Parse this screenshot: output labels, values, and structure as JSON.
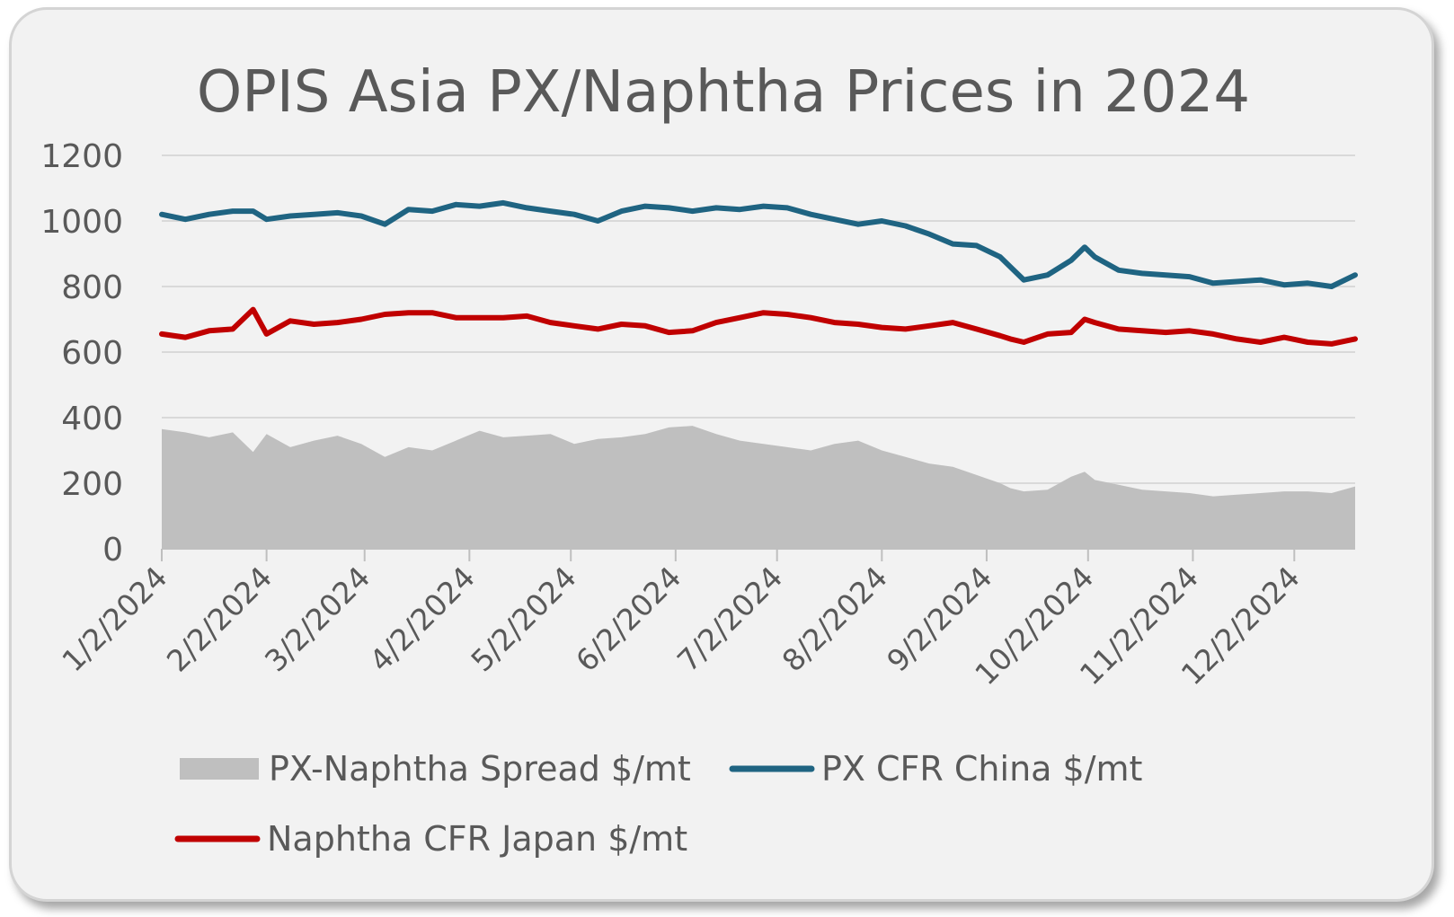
{
  "chart_data": {
    "type": "line",
    "title": "OPIS Asia PX/Naphtha Prices in 2024",
    "xlabel": "",
    "ylabel": "",
    "ylim": [
      0,
      1200
    ],
    "yticks": [
      "0",
      "200",
      "400",
      "600",
      "800",
      "1000",
      "1200"
    ],
    "xlim": [
      "2024-01-02",
      "2024-12-20"
    ],
    "xticks": [
      "1/2/2024",
      "2/2/2024",
      "3/2/2024",
      "4/2/2024",
      "5/2/2024",
      "6/2/2024",
      "7/2/2024",
      "8/2/2024",
      "9/2/2024",
      "10/2/2024",
      "11/2/2024",
      "12/2/2024"
    ],
    "grid": "horizontal",
    "legend_position": "bottom",
    "x": [
      "2024-01-02",
      "2024-01-09",
      "2024-01-16",
      "2024-01-23",
      "2024-01-29",
      "2024-02-02",
      "2024-02-09",
      "2024-02-16",
      "2024-02-23",
      "2024-03-01",
      "2024-03-08",
      "2024-03-15",
      "2024-03-22",
      "2024-03-29",
      "2024-04-05",
      "2024-04-12",
      "2024-04-19",
      "2024-04-26",
      "2024-05-03",
      "2024-05-10",
      "2024-05-17",
      "2024-05-24",
      "2024-05-31",
      "2024-06-07",
      "2024-06-14",
      "2024-06-21",
      "2024-06-28",
      "2024-07-05",
      "2024-07-12",
      "2024-07-19",
      "2024-07-26",
      "2024-08-02",
      "2024-08-09",
      "2024-08-16",
      "2024-08-23",
      "2024-08-30",
      "2024-09-06",
      "2024-09-09",
      "2024-09-13",
      "2024-09-20",
      "2024-09-27",
      "2024-10-01",
      "2024-10-04",
      "2024-10-11",
      "2024-10-18",
      "2024-10-25",
      "2024-11-01",
      "2024-11-08",
      "2024-11-15",
      "2024-11-22",
      "2024-11-29",
      "2024-12-06",
      "2024-12-13",
      "2024-12-20"
    ],
    "series": [
      {
        "name": "PX-Naphtha Spread $/mt",
        "type": "area",
        "color": "#bfbfbf",
        "values": [
          365,
          355,
          340,
          355,
          295,
          350,
          310,
          330,
          345,
          320,
          280,
          310,
          300,
          330,
          360,
          340,
          345,
          350,
          320,
          335,
          340,
          350,
          370,
          375,
          350,
          330,
          320,
          310,
          300,
          320,
          330,
          300,
          280,
          260,
          250,
          225,
          200,
          185,
          175,
          180,
          220,
          235,
          210,
          195,
          180,
          175,
          170,
          160,
          165,
          170,
          175,
          175,
          170,
          190
        ]
      },
      {
        "name": "PX CFR China $/mt",
        "type": "line",
        "color": "#1f6482",
        "values": [
          1020,
          1005,
          1020,
          1030,
          1030,
          1005,
          1015,
          1020,
          1025,
          1015,
          990,
          1035,
          1030,
          1050,
          1045,
          1055,
          1040,
          1030,
          1020,
          1000,
          1030,
          1045,
          1040,
          1030,
          1040,
          1035,
          1045,
          1040,
          1020,
          1005,
          990,
          1000,
          985,
          960,
          930,
          925,
          890,
          860,
          820,
          835,
          880,
          920,
          890,
          850,
          840,
          835,
          830,
          810,
          815,
          820,
          805,
          810,
          800,
          835
        ]
      },
      {
        "name": "Naphtha CFR Japan $/mt",
        "type": "line",
        "color": "#c00000",
        "values": [
          655,
          645,
          665,
          670,
          730,
          655,
          695,
          685,
          690,
          700,
          715,
          720,
          720,
          705,
          705,
          705,
          710,
          690,
          680,
          670,
          685,
          680,
          660,
          665,
          690,
          705,
          720,
          715,
          705,
          690,
          685,
          675,
          670,
          680,
          690,
          670,
          650,
          640,
          630,
          655,
          660,
          700,
          690,
          670,
          665,
          660,
          665,
          655,
          640,
          630,
          645,
          630,
          625,
          640
        ]
      }
    ]
  }
}
